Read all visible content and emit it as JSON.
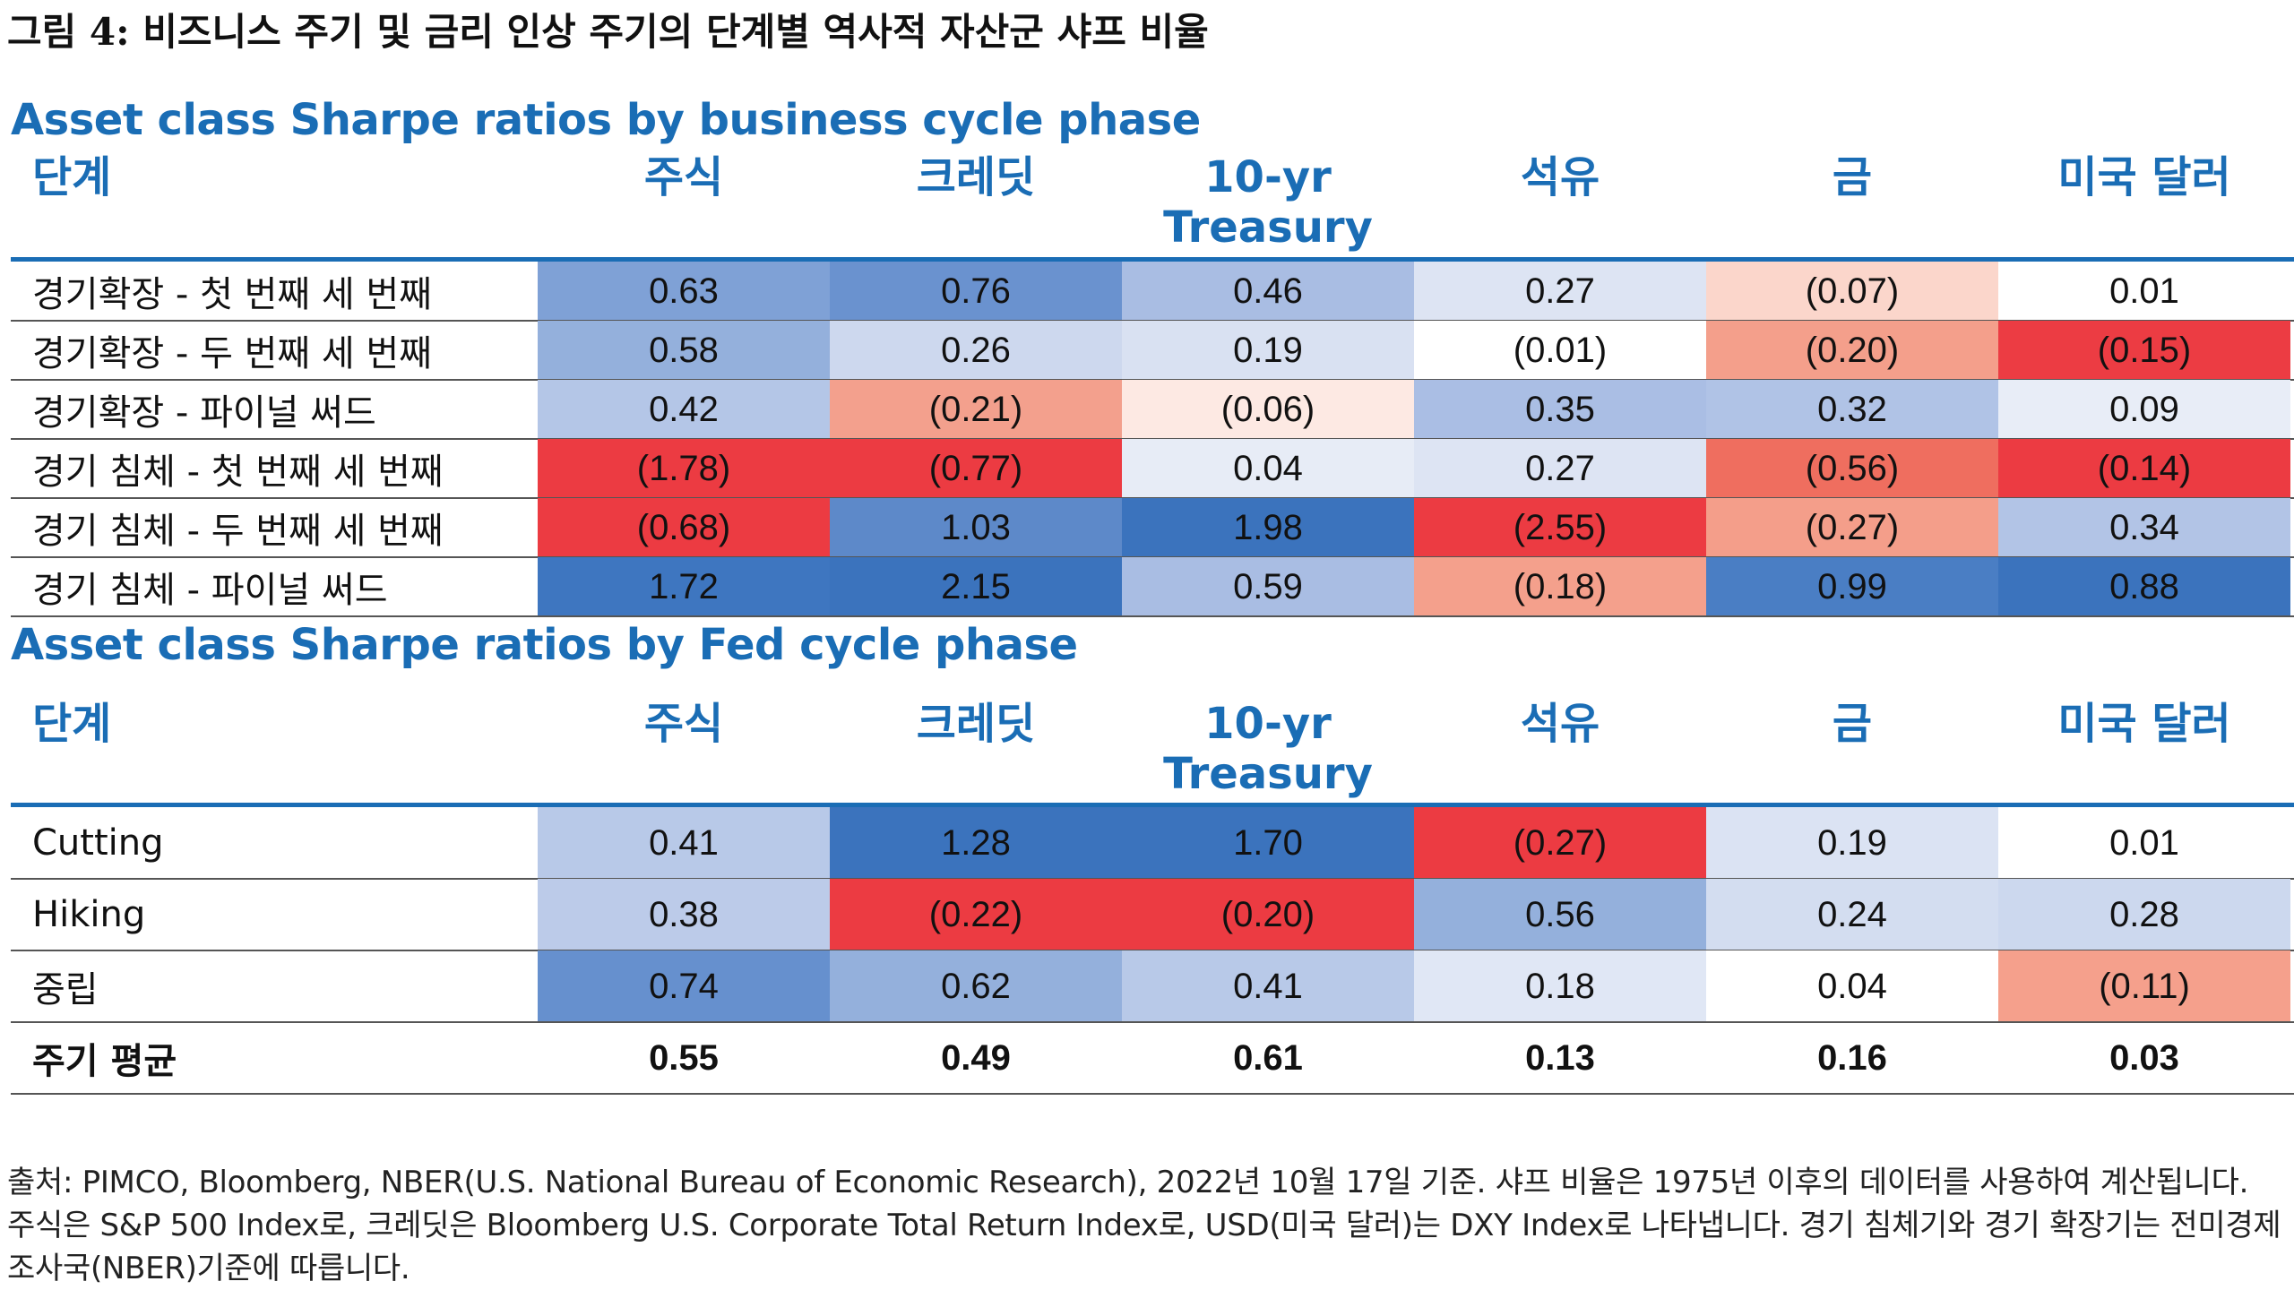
{
  "figure_title": "그림 4: 비즈니스 주기 및 금리 인상 주기의 단계별 역사적 자산군 샤프 비율",
  "colors": {
    "accent": "#1a6db5"
  },
  "columns": [
    "단계",
    "주식",
    "크레딧",
    "10-yr Treasury",
    "석유",
    "금",
    "미국 달러"
  ],
  "chart_data": [
    {
      "type": "table",
      "title": "Asset class Sharpe ratios by business cycle phase",
      "columns": [
        "단계",
        "주식",
        "크레딧",
        "10-yr Treasury",
        "석유",
        "금",
        "미국 달러"
      ],
      "rows": [
        {
          "label": "경기확장 - 첫 번째 세 번째",
          "values": [
            "0.63",
            "0.76",
            "0.46",
            "0.27",
            "(0.07)",
            "0.01"
          ]
        },
        {
          "label": "경기확장 - 두 번째 세 번째",
          "values": [
            "0.58",
            "0.26",
            "0.19",
            "(0.01)",
            "(0.20)",
            "(0.15)"
          ]
        },
        {
          "label": "경기확장 - 파이널 써드",
          "values": [
            "0.42",
            "(0.21)",
            "(0.06)",
            "0.35",
            "0.32",
            "0.09"
          ]
        },
        {
          "label": "경기 침체 - 첫 번째 세 번째",
          "values": [
            "(1.78)",
            "(0.77)",
            "0.04",
            "0.27",
            "(0.56)",
            "(0.14)"
          ]
        },
        {
          "label": "경기 침체 - 두 번째 세 번째",
          "values": [
            "(0.68)",
            "1.03",
            "1.98",
            "(2.55)",
            "(0.27)",
            "0.34"
          ]
        },
        {
          "label": "경기 침체 - 파이널 써드",
          "values": [
            "1.72",
            "2.15",
            "0.59",
            "(0.18)",
            "0.99",
            "0.88"
          ]
        }
      ],
      "cell_colors": [
        [
          "#7fa1d6",
          "#6a92cf",
          "#a9bde3",
          "#dde4f3",
          "#fbd6cb",
          "#ffffff"
        ],
        [
          "#94b0dc",
          "#cdd8ee",
          "#d9e1f2",
          "#ffffff",
          "#f49f8b",
          "#ec3c43"
        ],
        [
          "#b4c6e7",
          "#f3a08d",
          "#fde9e3",
          "#aabee4",
          "#b0c3e6",
          "#e8edf7"
        ],
        [
          "#ec3b42",
          "#ec3b42",
          "#e7ecf6",
          "#dde4f3",
          "#ef6e5f",
          "#ec3b42"
        ],
        [
          "#ec3b42",
          "#5d89c9",
          "#3b73bd",
          "#ec3b42",
          "#f49e8a",
          "#b2c4e6"
        ],
        [
          "#3e76c0",
          "#3b73bd",
          "#a9bde3",
          "#f4a08c",
          "#4a7ec4",
          "#3b73bd"
        ]
      ]
    },
    {
      "type": "table",
      "title": "Asset class Sharpe ratios by Fed cycle phase",
      "columns": [
        "단계",
        "주식",
        "크레딧",
        "10-yr Treasury",
        "석유",
        "금",
        "미국 달러"
      ],
      "rows": [
        {
          "label": "Cutting",
          "values": [
            "0.41",
            "1.28",
            "1.70",
            "(0.27)",
            "0.19",
            "0.01"
          ]
        },
        {
          "label": "Hiking",
          "values": [
            "0.38",
            "(0.22)",
            "(0.20)",
            "0.56",
            "0.24",
            "0.28"
          ]
        },
        {
          "label": "중립",
          "values": [
            "0.74",
            "0.62",
            "0.41",
            "0.18",
            "0.04",
            "(0.11)"
          ]
        }
      ],
      "cell_colors": [
        [
          "#b8c9e8",
          "#3b73bd",
          "#3b73bd",
          "#ec3b42",
          "#dbe3f3",
          "#ffffff"
        ],
        [
          "#bccbe9",
          "#ec3b42",
          "#ec3b42",
          "#94b0dc",
          "#d3ddf0",
          "#ccd8ee"
        ],
        [
          "#6690ce",
          "#94b0dc",
          "#b8c9e8",
          "#e0e7f5",
          "#ffffff",
          "#f5a08c"
        ]
      ],
      "summary_row": {
        "label": "주기 평균",
        "values": [
          "0.55",
          "0.49",
          "0.61",
          "0.13",
          "0.16",
          "0.03"
        ]
      }
    }
  ],
  "footnote": "출처: PIMCO, Bloomberg, NBER(U.S. National Bureau of Economic Research), 2022년 10월 17일 기준. 샤프 비율은 1975년 이후의 데이터를 사용하여 계산됩니다. 주식은 S&P 500 Index로, 크레딧은 Bloomberg U.S. Corporate Total Return Index로, USD(미국 달러)는 DXY Index로 나타냅니다. 경기 침체기와 경기 확장기는 전미경제조사국(NBER)기준에 따릅니다."
}
